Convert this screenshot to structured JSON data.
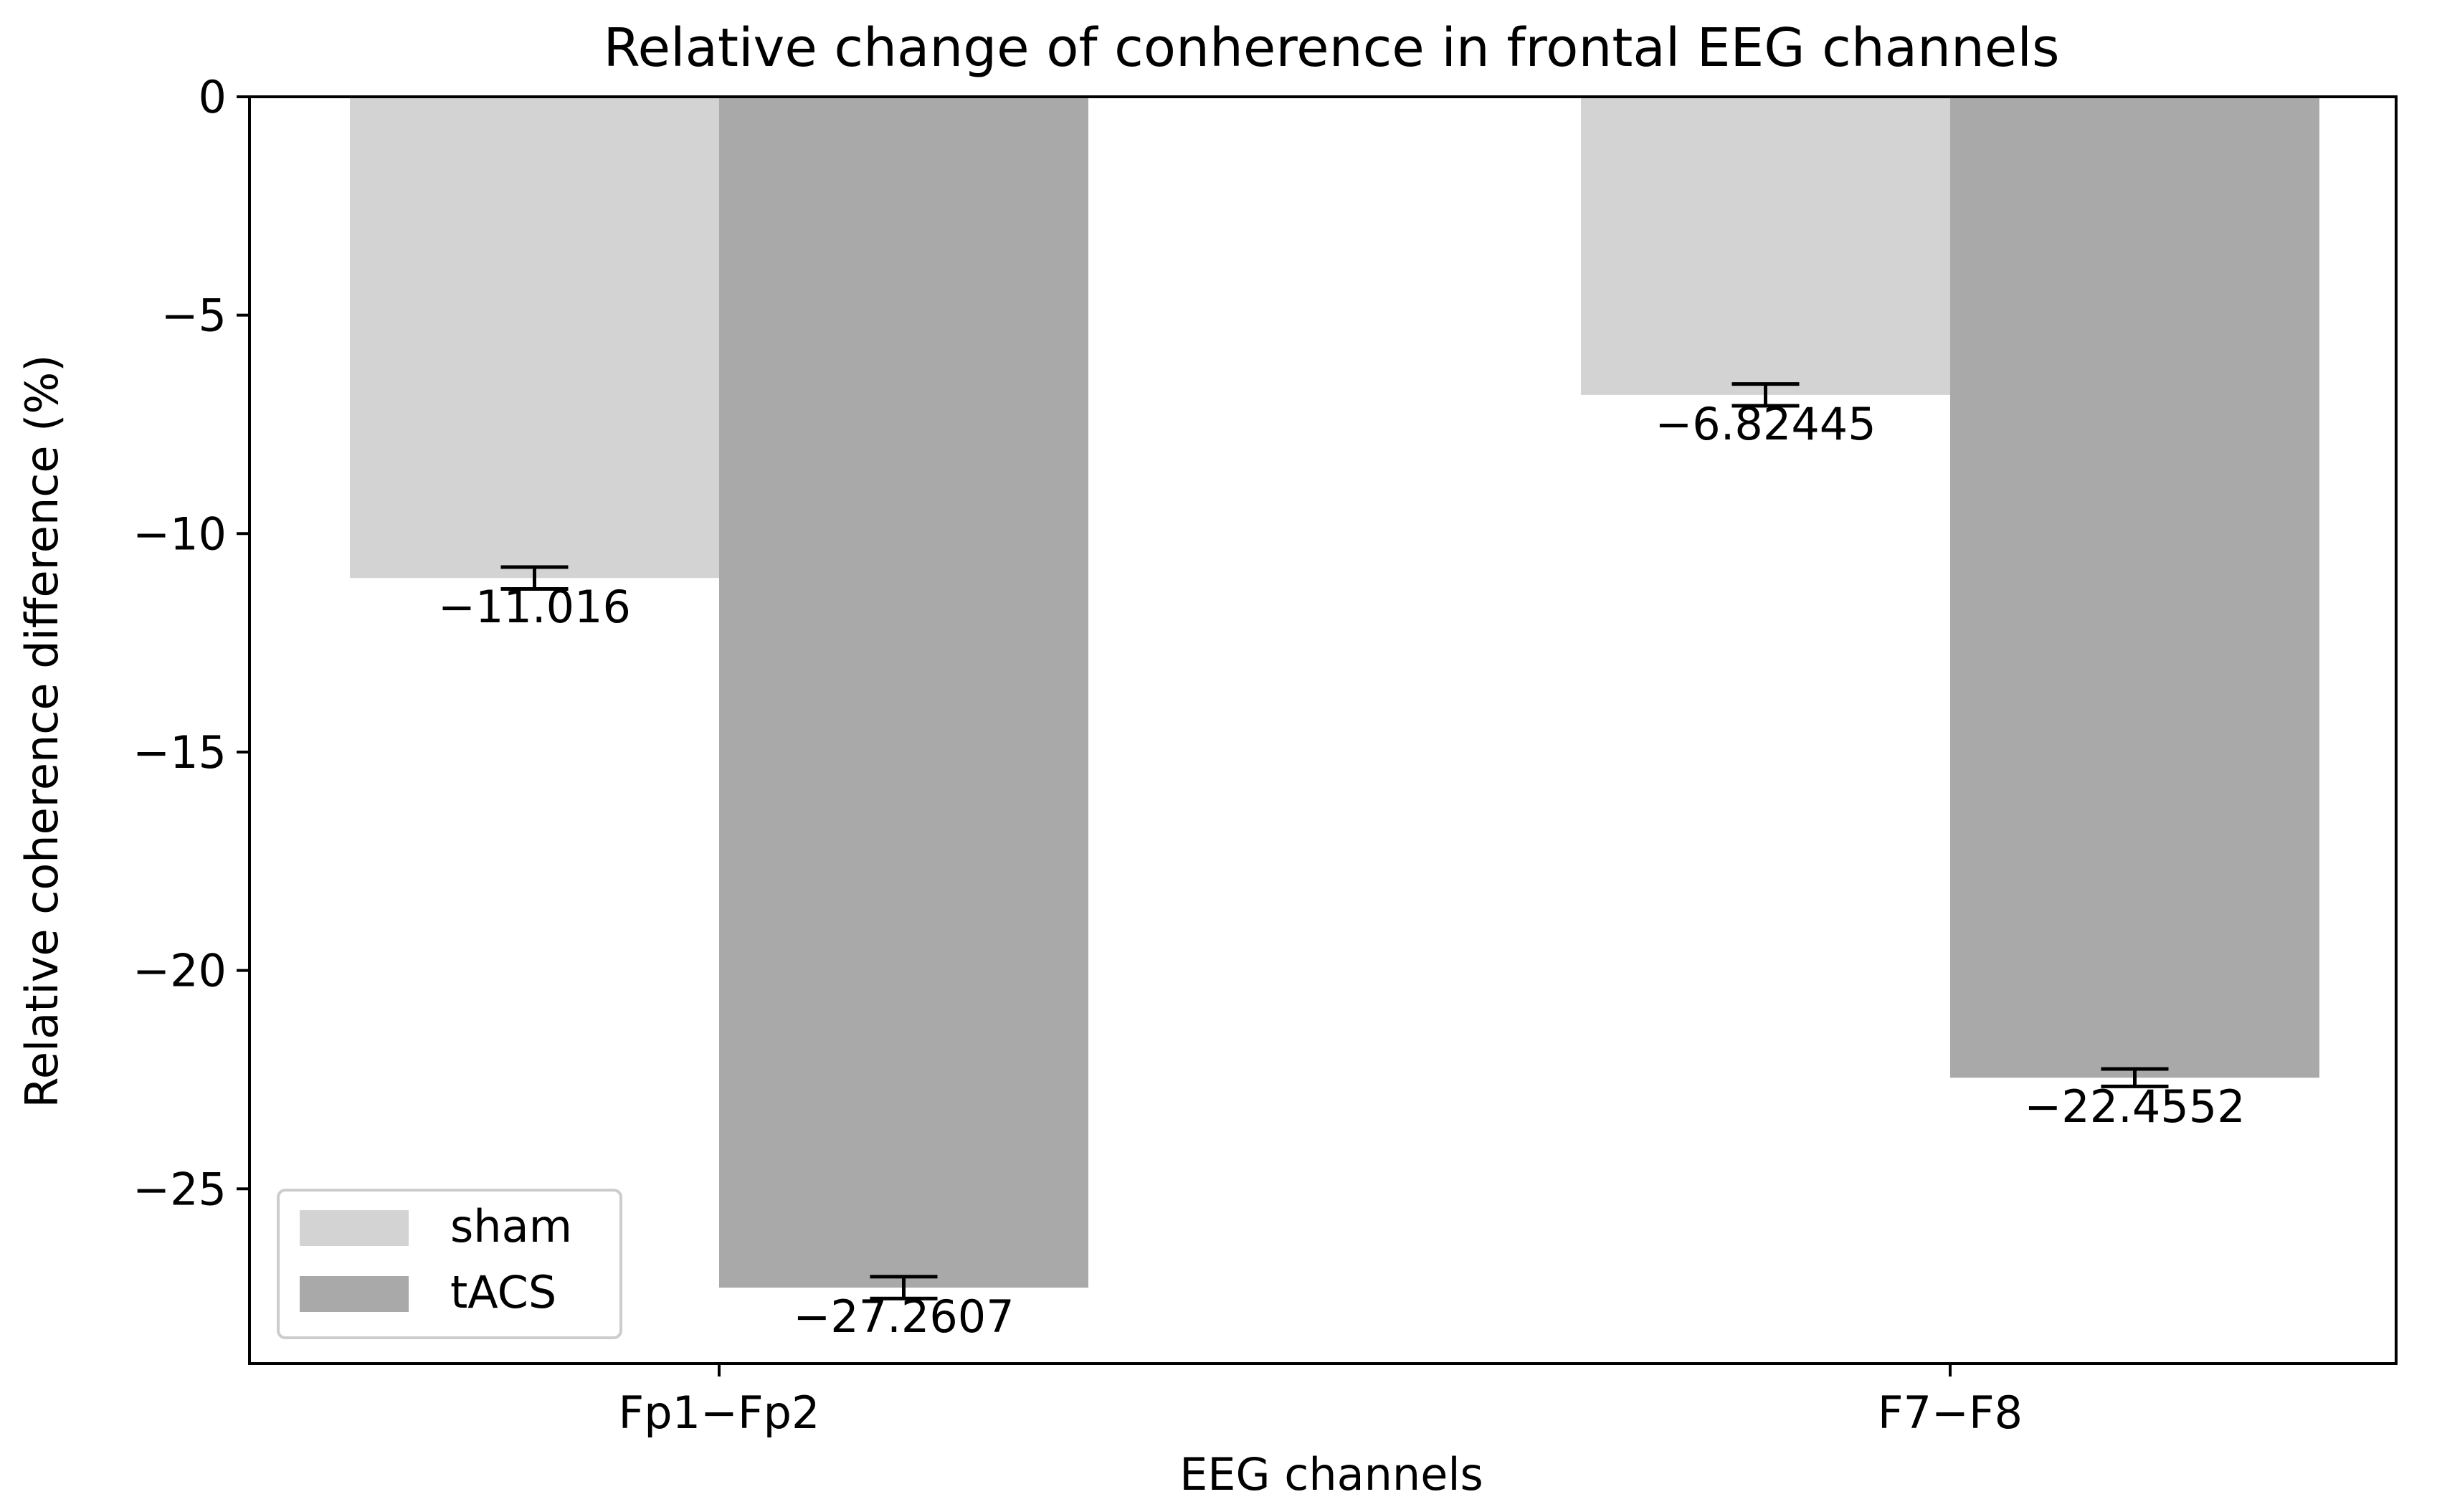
{
  "chart_data": {
    "type": "bar",
    "title": "Relative change of conherence in frontal EEG channels",
    "xlabel": "EEG channels",
    "ylabel": "Relative coherence difference (%)",
    "categories": [
      "Fp1−Fp2",
      "F7−F8"
    ],
    "ylim": [
      -29,
      0
    ],
    "yticks": [
      0,
      -5,
      -10,
      -15,
      -20,
      -25
    ],
    "ytick_labels": [
      "0",
      "−5",
      "−10",
      "−15",
      "−20",
      "−25"
    ],
    "series": [
      {
        "name": "sham",
        "color": "#d3d3d3",
        "values": [
          -11.016,
          -6.82445
        ],
        "errors": [
          0.25,
          0.25
        ],
        "labels": [
          "−11.016",
          "−6.82445"
        ]
      },
      {
        "name": "tACS",
        "color": "#a9a9a9",
        "values": [
          -27.2607,
          -22.4552
        ],
        "errors": [
          0.25,
          0.2
        ],
        "labels": [
          "−27.2607",
          "−22.4552"
        ]
      }
    ],
    "grid": false,
    "legend_position": "lower-left"
  }
}
